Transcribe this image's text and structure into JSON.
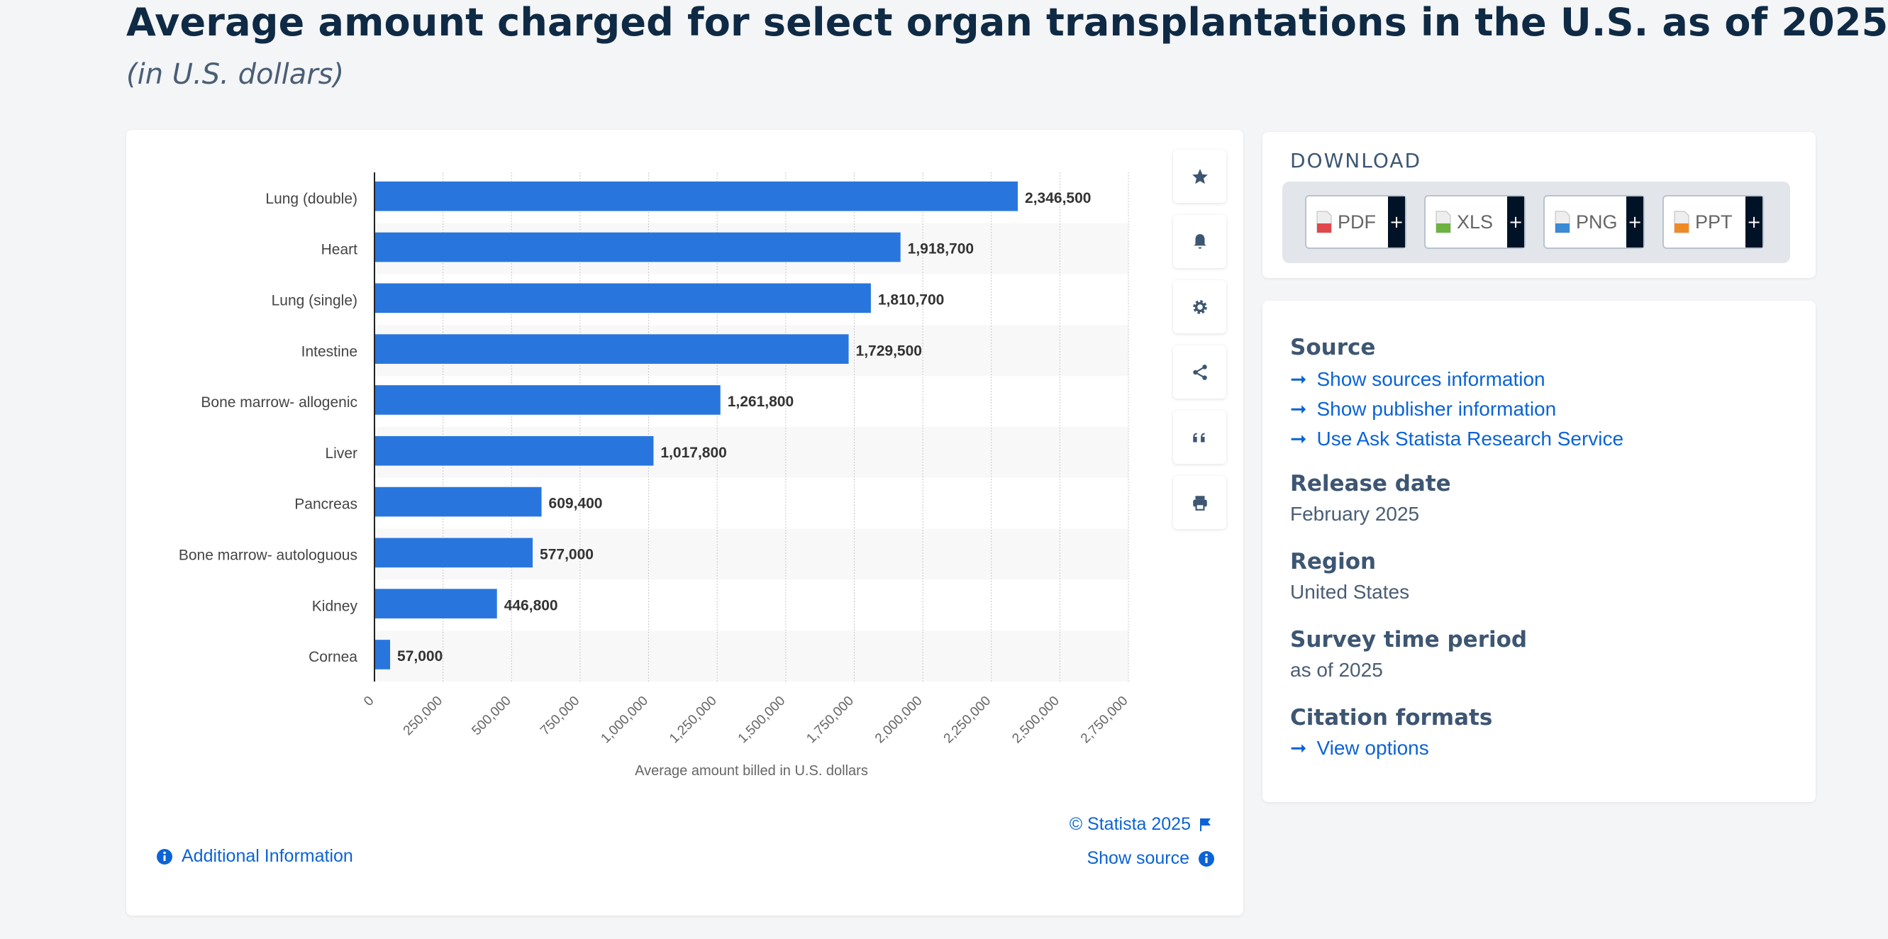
{
  "header": {
    "title": "Average amount charged for select organ transplantations in the U.S. as of 2025",
    "subtitle": "(in U.S. dollars)"
  },
  "chart_data": {
    "type": "bar",
    "orientation": "horizontal",
    "title": "Average amount charged for select organ transplantations in the U.S. as of 2025",
    "subtitle": "(in U.S. dollars)",
    "categories": [
      "Lung (double)",
      "Heart",
      "Lung (single)",
      "Intestine",
      "Bone marrow- allogenic",
      "Liver",
      "Pancreas",
      "Bone marrow- autologuous",
      "Kidney",
      "Cornea"
    ],
    "values": [
      2346500,
      1918700,
      1810700,
      1729500,
      1261800,
      1017800,
      609400,
      577000,
      446800,
      57000
    ],
    "value_labels": [
      "2,346,500",
      "1,918,700",
      "1,810,700",
      "1,729,500",
      "1,261,800",
      "1,017,800",
      "609,400",
      "577,000",
      "446,800",
      "57,000"
    ],
    "xlabel": "Average amount billed in U.S. dollars",
    "ylabel": "",
    "xlim": [
      0,
      2750000
    ],
    "xticks": [
      0,
      250000,
      500000,
      750000,
      1000000,
      1250000,
      1500000,
      1750000,
      2000000,
      2250000,
      2500000,
      2750000
    ],
    "xtick_labels": [
      "0",
      "250,000",
      "500,000",
      "750,000",
      "1,000,000",
      "1,250,000",
      "1,500,000",
      "1,750,000",
      "2,000,000",
      "2,250,000",
      "2,500,000",
      "2,750,000"
    ],
    "grid": true,
    "bar_color": "#2876dd"
  },
  "chart_footer": {
    "copyright": "© Statista 2025",
    "show_source": "Show source",
    "additional_info": "Additional Information"
  },
  "toolbar": [
    "star-icon",
    "bell-icon",
    "gear-icon",
    "share-icon",
    "quote-icon",
    "print-icon"
  ],
  "download": {
    "title": "DOWNLOAD",
    "buttons": [
      {
        "label": "PDF",
        "color": "#e0484b"
      },
      {
        "label": "XLS",
        "color": "#6db33f"
      },
      {
        "label": "PNG",
        "color": "#3a8ad6"
      },
      {
        "label": "PPT",
        "color": "#f08a24"
      }
    ],
    "plus": "+"
  },
  "info": {
    "source_heading": "Source",
    "source_links": [
      "Show sources information",
      "Show publisher information",
      "Use Ask Statista Research Service"
    ],
    "release_heading": "Release date",
    "release_value": "February 2025",
    "region_heading": "Region",
    "region_value": "United States",
    "survey_heading": "Survey time period",
    "survey_value": "as of 2025",
    "citation_heading": "Citation formats",
    "citation_link": "View options",
    "arrow": "➞"
  }
}
